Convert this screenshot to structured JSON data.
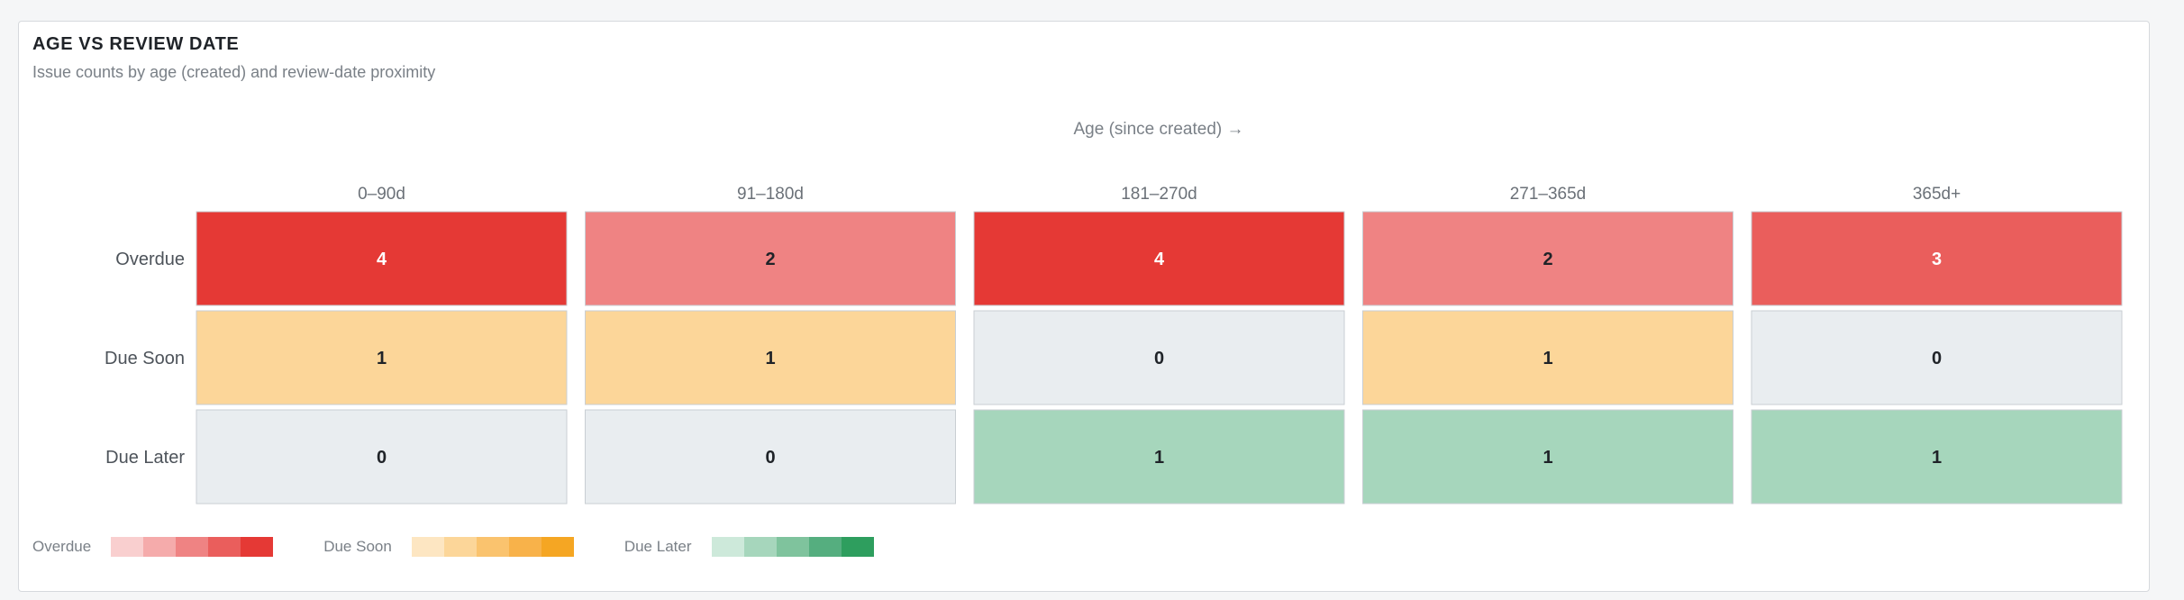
{
  "title": "AGE VS REVIEW DATE",
  "subtitle": "Issue counts by age (created) and review-date proximity",
  "chart_data": {
    "type": "heatmap",
    "title": "AGE VS REVIEW DATE",
    "subtitle": "Issue counts by age (created) and review-date proximity",
    "xlabel": "Age (since created) →",
    "ylabel": "",
    "columns": [
      "0–90d",
      "91–180d",
      "181–270d",
      "271–365d",
      "365d+"
    ],
    "rows": [
      "Overdue",
      "Due Soon",
      "Due Later"
    ],
    "values": [
      [
        4,
        2,
        4,
        2,
        3
      ],
      [
        1,
        1,
        0,
        1,
        0
      ],
      [
        0,
        0,
        1,
        1,
        1
      ]
    ],
    "legend_placement": "bottom-left",
    "zero_color": "#e9edf0",
    "scales": {
      "Overdue": [
        "#f9cfcf",
        "#f5abab",
        "#ef8383",
        "#ea5e5c",
        "#e53935"
      ],
      "Due Soon": [
        "#fde6c2",
        "#fcd699",
        "#fac36e",
        "#f8b24a",
        "#f5a623"
      ],
      "Due Later": [
        "#cde9da",
        "#a6d6bc",
        "#7fc39d",
        "#55ae7f",
        "#2e9e5e"
      ]
    }
  },
  "legend": [
    {
      "label": "Overdue",
      "colors": [
        "#f9cfcf",
        "#f5abab",
        "#ef8383",
        "#ea5e5c",
        "#e53935"
      ]
    },
    {
      "label": "Due Soon",
      "colors": [
        "#fde6c2",
        "#fcd699",
        "#fac36e",
        "#f8b24a",
        "#f5a623"
      ]
    },
    {
      "label": "Due Later",
      "colors": [
        "#cde9da",
        "#a6d6bc",
        "#7fc39d",
        "#55ae7f",
        "#2e9e5e"
      ]
    }
  ]
}
